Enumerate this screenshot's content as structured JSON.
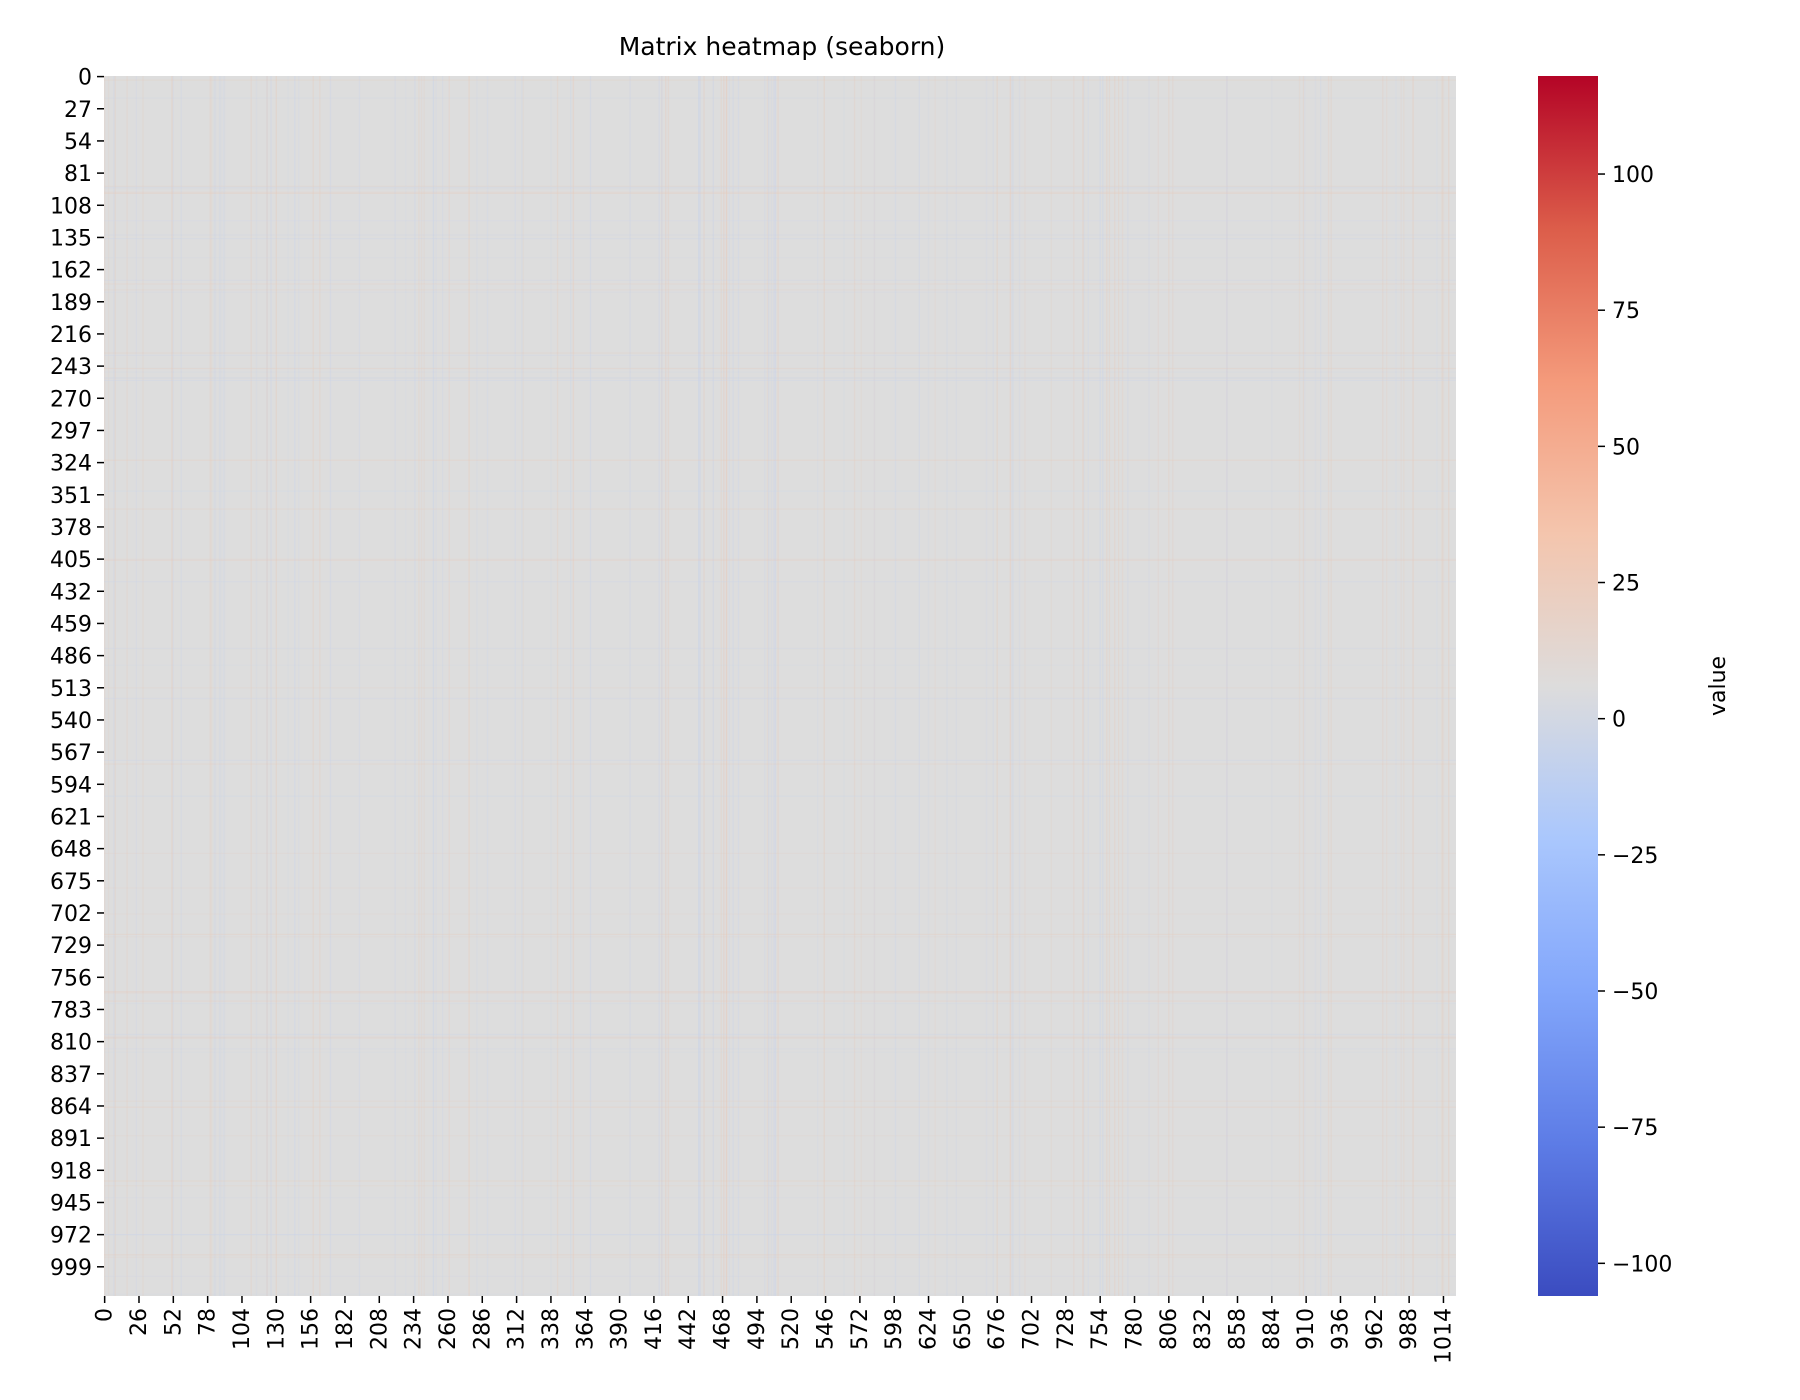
{
  "chart_data": {
    "type": "heatmap",
    "title": "Matrix heatmap (seaborn)",
    "xlabel": "",
    "ylabel": "",
    "rows": 1024,
    "cols": 1024,
    "y_ticks": [
      "0",
      "27",
      "54",
      "81",
      "108",
      "135",
      "162",
      "189",
      "216",
      "243",
      "270",
      "297",
      "324",
      "351",
      "378",
      "405",
      "432",
      "459",
      "486",
      "513",
      "540",
      "567",
      "594",
      "621",
      "648",
      "675",
      "702",
      "729",
      "756",
      "783",
      "810",
      "837",
      "864",
      "891",
      "918",
      "945",
      "972",
      "999"
    ],
    "x_ticks": [
      "0",
      "26",
      "52",
      "78",
      "104",
      "130",
      "156",
      "182",
      "208",
      "234",
      "260",
      "286",
      "312",
      "338",
      "364",
      "390",
      "416",
      "442",
      "468",
      "494",
      "520",
      "546",
      "572",
      "598",
      "624",
      "650",
      "676",
      "702",
      "728",
      "754",
      "780",
      "806",
      "832",
      "858",
      "884",
      "910",
      "936",
      "962",
      "988",
      "1014"
    ],
    "colorbar": {
      "label": "value",
      "colormap": "coolwarm",
      "vmin": -106,
      "vmax": 118,
      "ticks": [
        "100",
        "75",
        "50",
        "25",
        "0",
        "−25",
        "−50",
        "−75",
        "−100"
      ]
    },
    "dominant_value": 0,
    "colors": {
      "low": "#3b4cc0",
      "mid": "#dddddd",
      "high": "#b40426"
    }
  }
}
